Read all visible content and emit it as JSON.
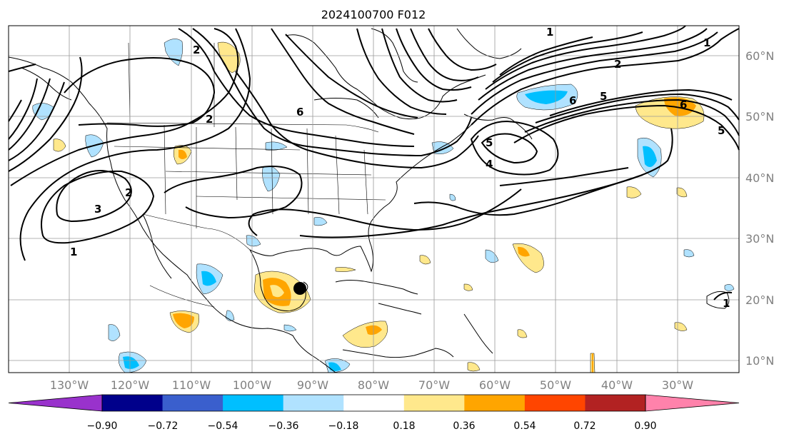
{
  "title": "2024100700 F012",
  "lon_labels": [
    "130°W",
    "120°W",
    "110°W",
    "100°W",
    "90°W",
    "80°W",
    "70°W",
    "60°W",
    "50°W",
    "40°W",
    "30°W"
  ],
  "lat_labels": [
    "60°N",
    "50°N",
    "40°N",
    "30°N",
    "20°N",
    "10°N"
  ],
  "colorbar": {
    "ticks": [
      "−0.90",
      "−0.72",
      "−0.54",
      "−0.36",
      "−0.18",
      "0.18",
      "0.36",
      "0.54",
      "0.72",
      "0.90"
    ],
    "colors": [
      "#9932cc",
      "#00008b",
      "#3a5fcd",
      "#00bfff",
      "#b0e2ff",
      "#ffffff",
      "#ffe88c",
      "#ffa500",
      "#ff4500",
      "#b22222",
      "#ff82ab"
    ]
  },
  "contour_labels": [
    "1",
    "2",
    "3",
    "2",
    "6",
    "6",
    "5",
    "6",
    "5",
    "2",
    "1",
    "4",
    "5",
    "1",
    "2",
    "1"
  ],
  "marker": "storm-center-dot"
}
